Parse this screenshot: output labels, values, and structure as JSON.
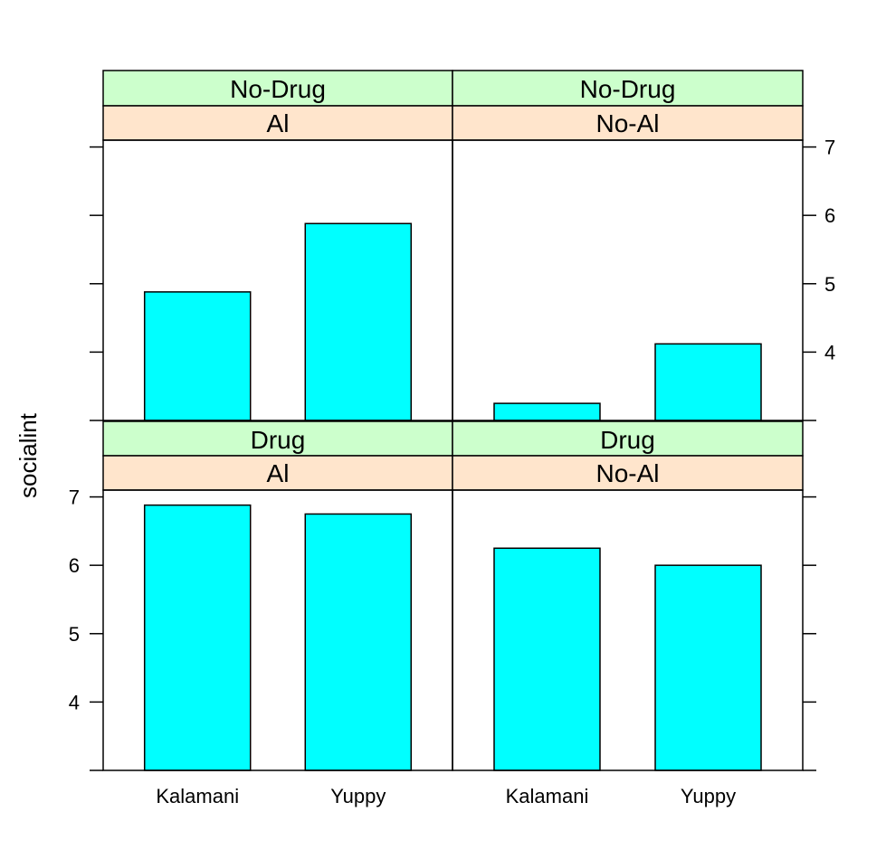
{
  "chart_data": {
    "type": "bar",
    "layout": "trellis 2x2",
    "ylabel": "socialint",
    "ylim": [
      3,
      7.1
    ],
    "yticks": [
      4,
      5,
      6,
      7
    ],
    "categories": [
      "Kalamani",
      "Yuppy"
    ],
    "colors": {
      "bar_fill": "#00FFFF",
      "strip_outer": "#CCFFCC",
      "strip_inner": "#FFE5CC",
      "axis": "#000000"
    },
    "panels": [
      {
        "strip_outer": "No-Drug",
        "strip_inner": "Al",
        "values": [
          4.88,
          5.88
        ]
      },
      {
        "strip_outer": "No-Drug",
        "strip_inner": "No-Al",
        "values": [
          3.25,
          4.12
        ]
      },
      {
        "strip_outer": "Drug",
        "strip_inner": "Al",
        "values": [
          6.88,
          6.75
        ]
      },
      {
        "strip_outer": "Drug",
        "strip_inner": "No-Al",
        "values": [
          6.25,
          6.0
        ]
      }
    ]
  }
}
